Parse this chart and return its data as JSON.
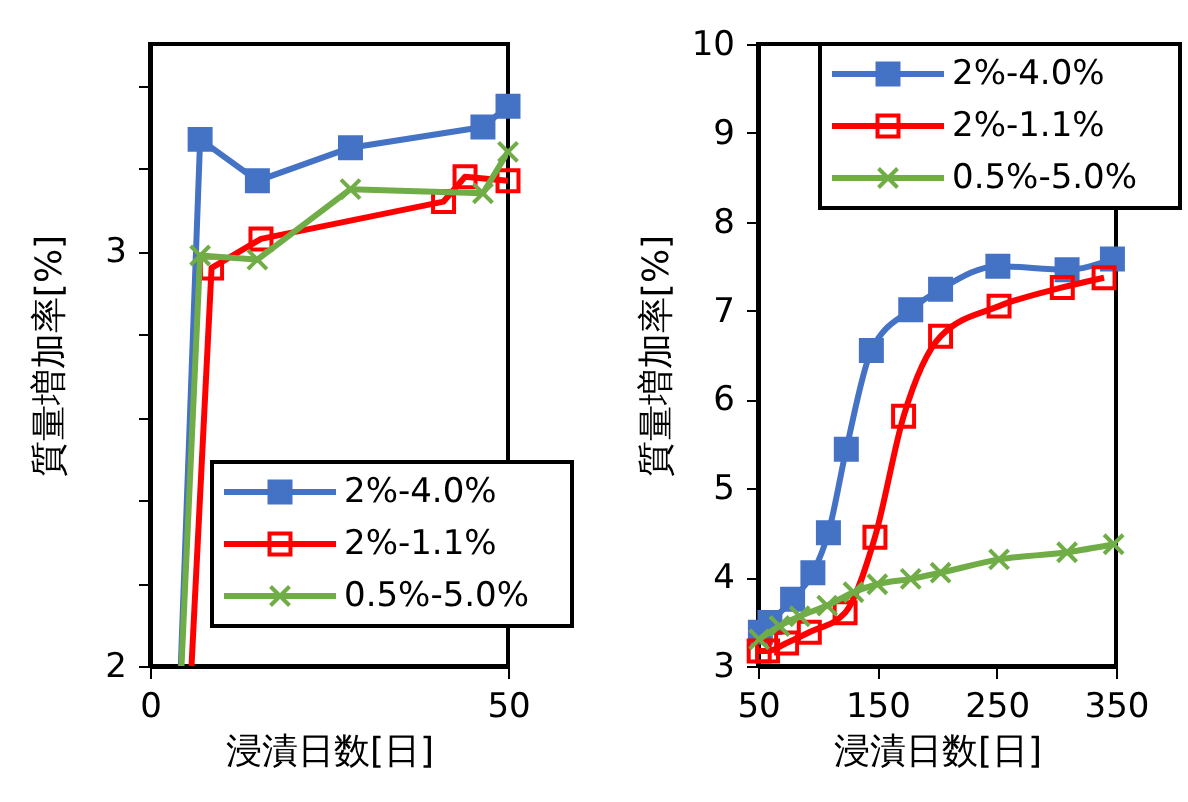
{
  "chart_data": [
    {
      "type": "line",
      "xlabel": "浸漬日数[日]",
      "ylabel": "質量増加率[%]",
      "xlim": [
        0,
        50
      ],
      "xticks": [
        0,
        50
      ],
      "ylim": [
        2,
        3.5
      ],
      "yticks": [
        2,
        {
          "value": 2.2,
          "label": null
        },
        {
          "value": 2.4,
          "label": null
        },
        {
          "value": 2.6,
          "label": null
        },
        {
          "value": 2.8,
          "label": null
        },
        3,
        {
          "value": 3.2,
          "label": null
        },
        {
          "value": 3.4,
          "label": null
        }
      ],
      "legend": "bottom right",
      "series": [
        {
          "name": "2%-4.0%",
          "color": "#4472c4",
          "marker": "square",
          "x": [
            4.3,
            7,
            15,
            28,
            46.5,
            50
          ],
          "values": [
            2,
            3.27,
            3.17,
            3.25,
            3.3,
            3.35
          ]
        },
        {
          "name": "2%-1.1%",
          "color": "#ff0000",
          "marker": "square",
          "x": [
            5.8,
            8.6,
            15.5,
            41,
            44,
            50
          ],
          "values": [
            2,
            2.96,
            3.03,
            3.12,
            3.18,
            3.17
          ]
        },
        {
          "name": "0.5%-5.0%",
          "color": "#70ad47",
          "marker": "cross",
          "x": [
            4.4,
            7,
            15,
            28,
            46.5,
            50
          ],
          "values": [
            2,
            2.99,
            2.98,
            3.15,
            3.14,
            3.24
          ]
        }
      ]
    },
    {
      "type": "line",
      "xlabel": "浸漬日数[日]",
      "ylabel": "質量増加率[%]",
      "xlim": [
        50,
        350
      ],
      "xticks": [
        50,
        150,
        250,
        350
      ],
      "ylim": [
        3,
        10
      ],
      "yticks": [
        3,
        4,
        5,
        6,
        7,
        8,
        9,
        10
      ],
      "legend": "top right",
      "series": [
        {
          "name": "2%-4.0%",
          "color": "#4472c4",
          "marker": "square",
          "x": [
            52,
            60,
            79,
            96,
            109,
            124,
            145,
            178,
            203,
            251,
            309,
            347
          ],
          "values": [
            3.38,
            3.49,
            3.75,
            4.05,
            4.5,
            5.44,
            6.55,
            7.01,
            7.24,
            7.5,
            7.46,
            7.58
          ]
        },
        {
          "name": "2%-1.1%",
          "color": "#ff0000",
          "marker": "square",
          "x": [
            51,
            58,
            74,
            93,
            123,
            148,
            172,
            203,
            252,
            305,
            340
          ],
          "values": [
            3.17,
            3.17,
            3.26,
            3.38,
            3.6,
            4.45,
            5.81,
            6.71,
            7.05,
            7.26,
            7.37
          ]
        },
        {
          "name": "0.5%-5.0%",
          "color": "#70ad47",
          "marker": "cross",
          "x": [
            51,
            68,
            85,
            108,
            130,
            150,
            178,
            203,
            252,
            309,
            348
          ],
          "values": [
            3.3,
            3.45,
            3.56,
            3.68,
            3.83,
            3.92,
            3.98,
            4.05,
            4.2,
            4.28,
            4.37
          ]
        }
      ]
    }
  ]
}
